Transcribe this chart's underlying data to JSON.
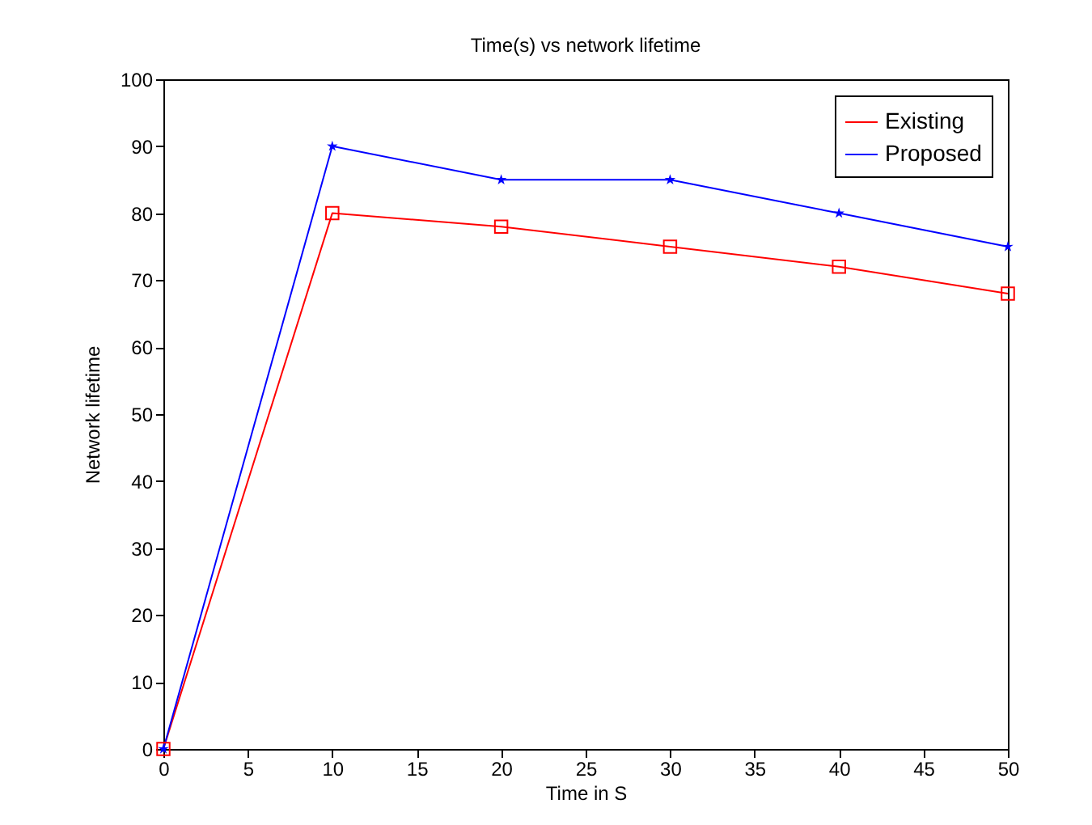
{
  "chart_data": {
    "type": "line",
    "title": "Time(s) vs network lifetime",
    "xlabel": "Time in S",
    "ylabel": "Network lifetime",
    "x": [
      0,
      10,
      20,
      30,
      40,
      50
    ],
    "series": [
      {
        "name": "Existing",
        "color": "#ff0000",
        "marker": "square",
        "values": [
          0,
          80,
          78,
          75,
          72,
          68
        ]
      },
      {
        "name": "Proposed",
        "color": "#0000ff",
        "marker": "star",
        "values": [
          0,
          90,
          85,
          85,
          80,
          75
        ]
      }
    ],
    "xlim": [
      0,
      50
    ],
    "xticks": [
      0,
      5,
      10,
      15,
      20,
      25,
      30,
      35,
      40,
      45,
      50
    ],
    "ylim": [
      0,
      100
    ],
    "yticks": [
      0,
      10,
      20,
      30,
      40,
      50,
      60,
      70,
      80,
      90,
      100
    ],
    "legend": "top right",
    "line_style": "solid"
  }
}
